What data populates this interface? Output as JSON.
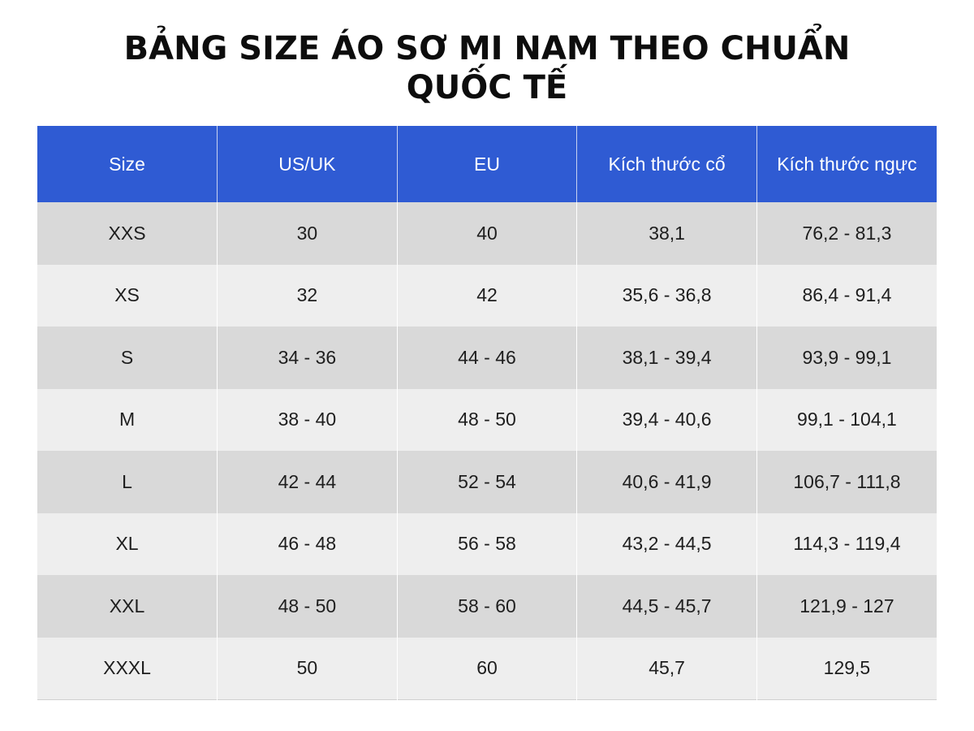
{
  "title": {
    "line1": "BẢNG SIZE ÁO SƠ MI NAM THEO CHUẨN",
    "line2": "QUỐC TẾ"
  },
  "colors": {
    "header_bg": "#2f5bd3",
    "header_text": "#ffffff",
    "row_dark": "#d9d9d9",
    "row_light": "#eeeeee"
  },
  "table": {
    "headers": [
      "Size",
      "US/UK",
      "EU",
      "Kích thước cổ",
      "Kích thước ngực"
    ],
    "rows": [
      [
        "XXS",
        "30",
        "40",
        "38,1",
        "76,2 - 81,3"
      ],
      [
        "XS",
        "32",
        "42",
        "35,6 - 36,8",
        "86,4 - 91,4"
      ],
      [
        "S",
        "34 - 36",
        "44 - 46",
        "38,1 - 39,4",
        "93,9 - 99,1"
      ],
      [
        "M",
        "38 - 40",
        "48 - 50",
        "39,4 - 40,6",
        "99,1 - 104,1"
      ],
      [
        "L",
        "42 - 44",
        "52 - 54",
        "40,6 - 41,9",
        "106,7 - 111,8"
      ],
      [
        "XL",
        "46 - 48",
        "56 - 58",
        "43,2 - 44,5",
        "114,3 - 119,4"
      ],
      [
        "XXL",
        "48 - 50",
        "58 - 60",
        "44,5 - 45,7",
        "121,9 - 127"
      ],
      [
        "XXXL",
        "50",
        "60",
        "45,7",
        "129,5"
      ]
    ]
  }
}
